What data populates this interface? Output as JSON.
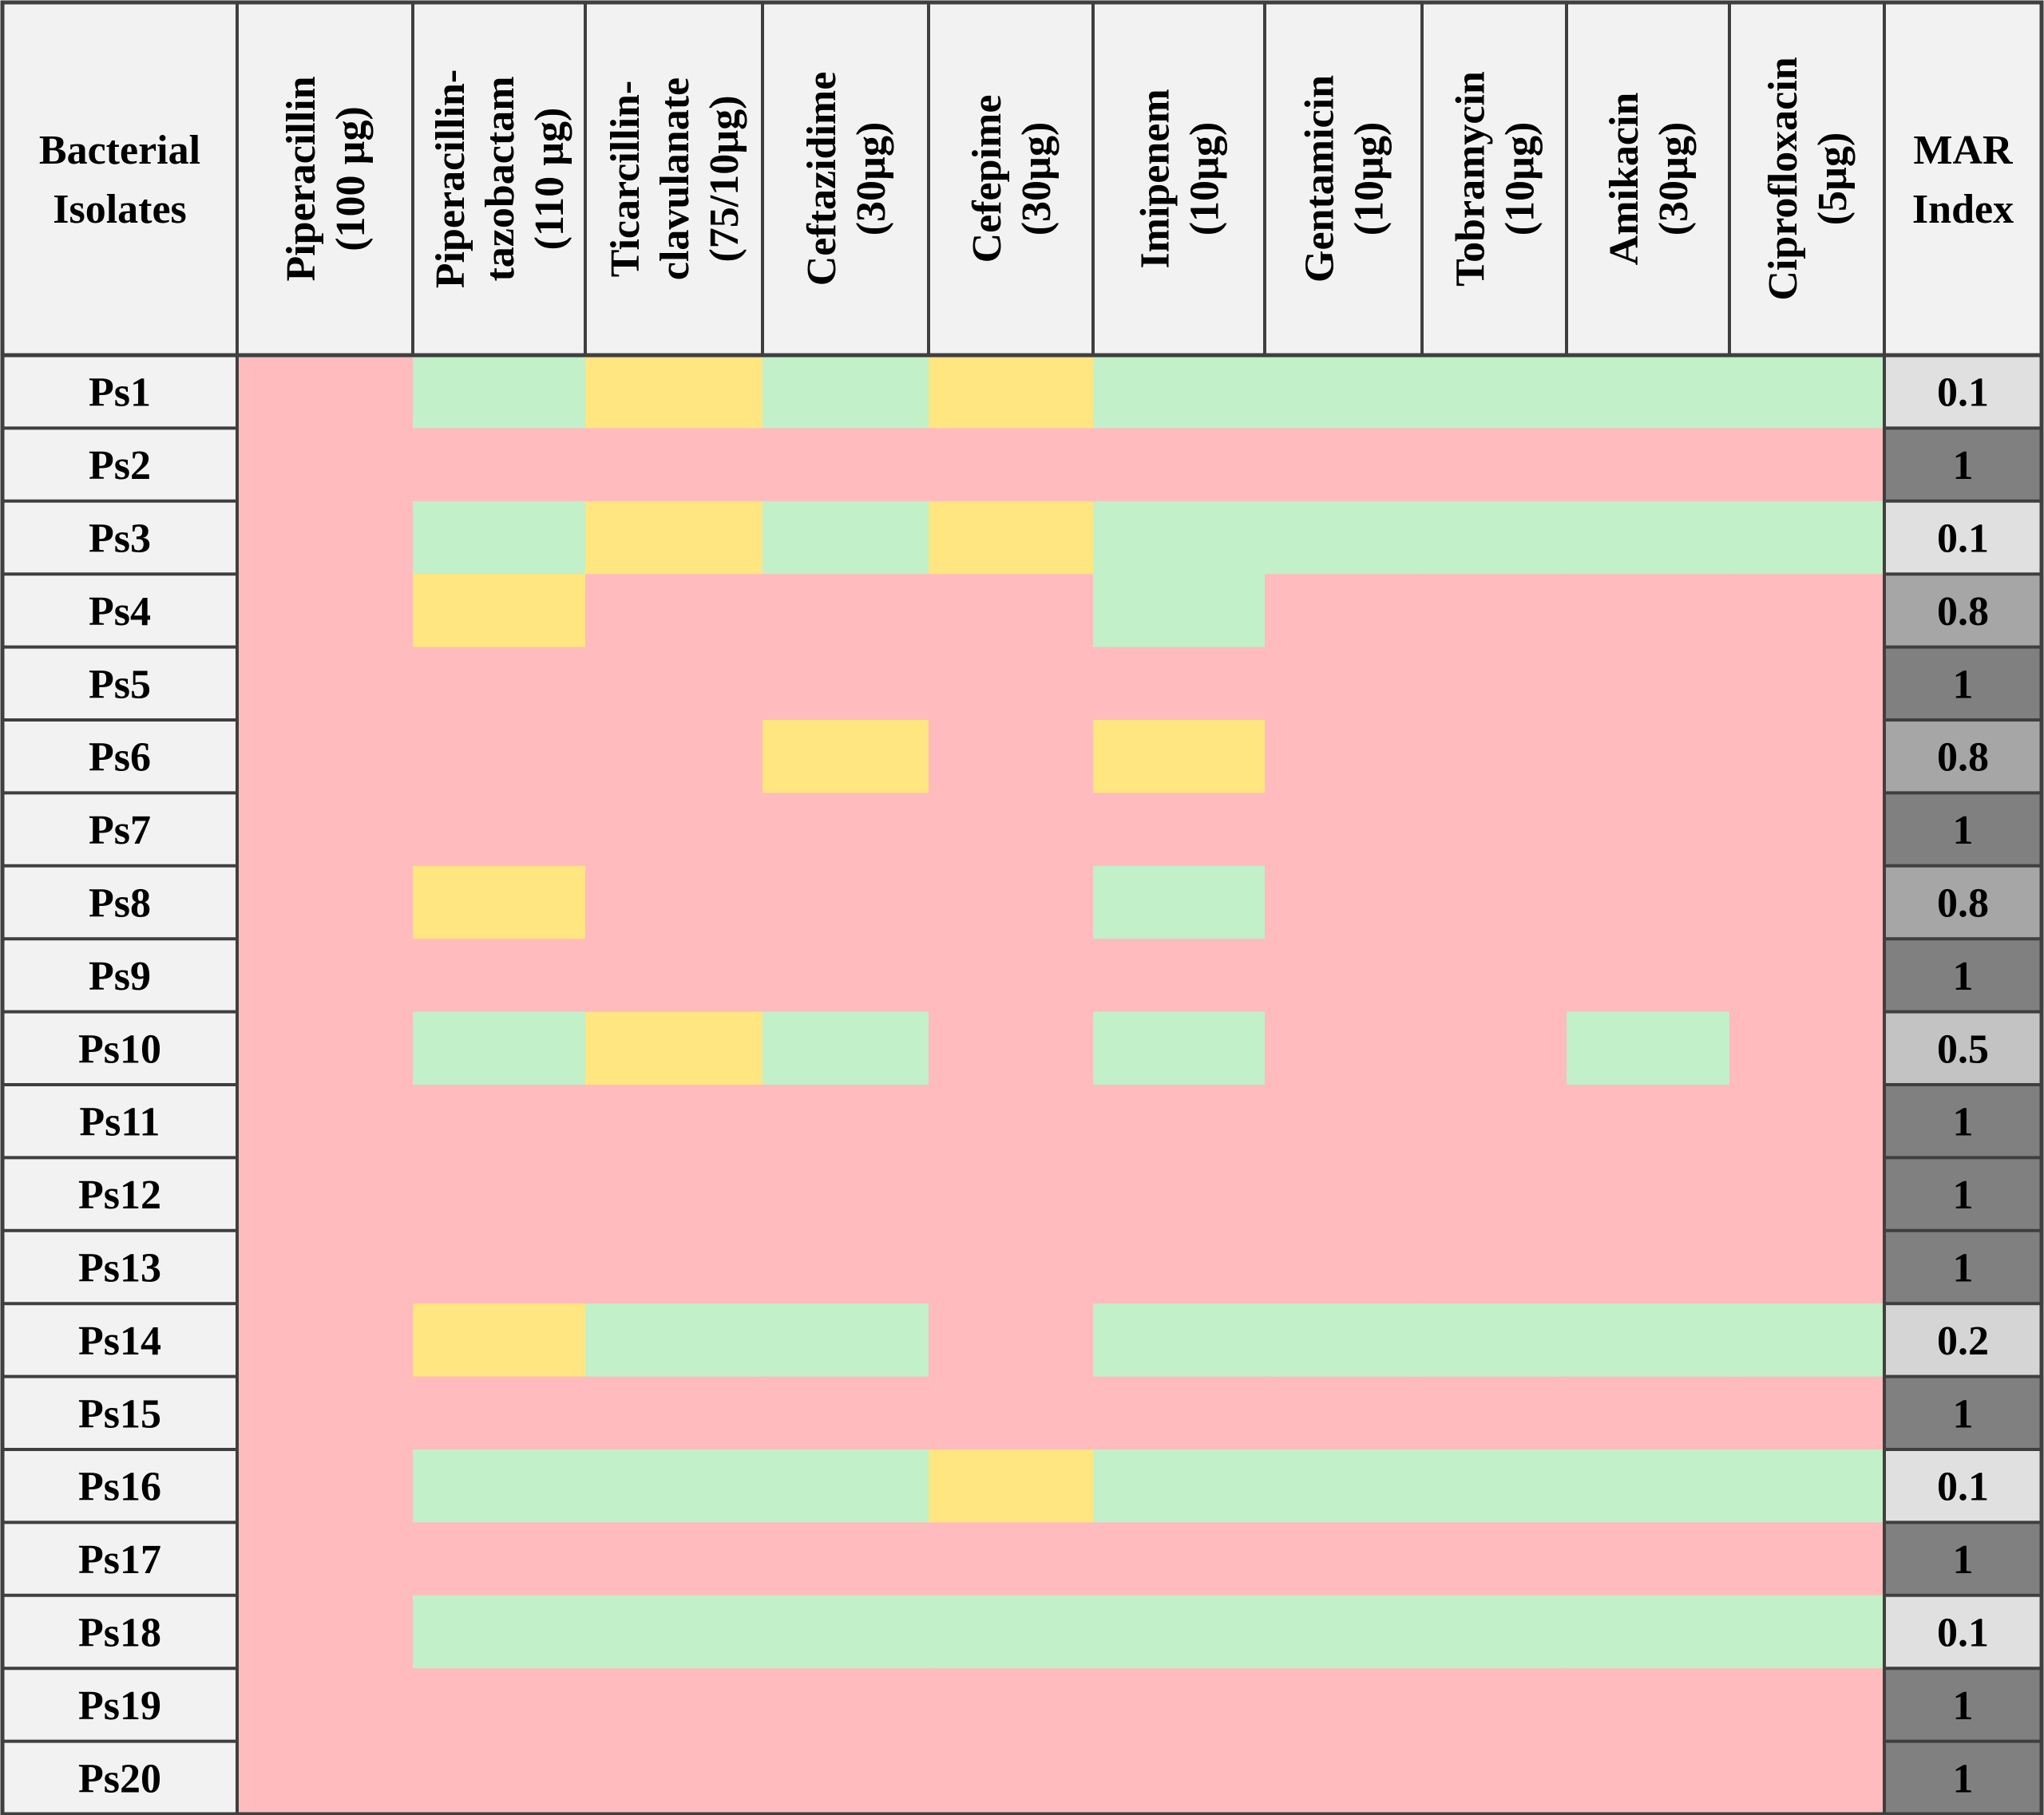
{
  "chart_data": {
    "type": "heatmap",
    "row_header": [
      "Bacterial",
      "Isolates"
    ],
    "columns": [
      {
        "lines": [
          "Piperacillin",
          "(100 µg)"
        ]
      },
      {
        "lines": [
          "Piperacillin-",
          "tazobactam",
          "(110 µg)"
        ]
      },
      {
        "lines": [
          "Ticarcillin-",
          "clavulanate",
          "(75/10µg)"
        ]
      },
      {
        "lines": [
          "Ceftazidime",
          "(30µg)"
        ]
      },
      {
        "lines": [
          "Cefepime",
          "(30µg)"
        ]
      },
      {
        "lines": [
          "Imipenem",
          "(10µg)"
        ]
      },
      {
        "lines": [
          "Gentamicin",
          "(10µg)"
        ]
      },
      {
        "lines": [
          "Tobramycin",
          "(10µg)"
        ]
      },
      {
        "lines": [
          "Amikacin",
          "(30µg)"
        ]
      },
      {
        "lines": [
          "Ciprofloxacin",
          "(5µg)"
        ]
      }
    ],
    "index_header": [
      "MAR",
      "Index"
    ],
    "rows": [
      {
        "label": "Ps1",
        "cells": [
          "R",
          "S",
          "I",
          "S",
          "I",
          "S",
          "S",
          "S",
          "S",
          "S"
        ],
        "mar": "0.1"
      },
      {
        "label": "Ps2",
        "cells": [
          "R",
          "R",
          "R",
          "R",
          "R",
          "R",
          "R",
          "R",
          "R",
          "R"
        ],
        "mar": "1"
      },
      {
        "label": "Ps3",
        "cells": [
          "R",
          "S",
          "I",
          "S",
          "I",
          "S",
          "S",
          "S",
          "S",
          "S"
        ],
        "mar": "0.1"
      },
      {
        "label": "Ps4",
        "cells": [
          "R",
          "I",
          "R",
          "R",
          "R",
          "S",
          "R",
          "R",
          "R",
          "R"
        ],
        "mar": "0.8"
      },
      {
        "label": "Ps5",
        "cells": [
          "R",
          "R",
          "R",
          "R",
          "R",
          "R",
          "R",
          "R",
          "R",
          "R"
        ],
        "mar": "1"
      },
      {
        "label": "Ps6",
        "cells": [
          "R",
          "R",
          "R",
          "I",
          "R",
          "I",
          "R",
          "R",
          "R",
          "R"
        ],
        "mar": "0.8"
      },
      {
        "label": "Ps7",
        "cells": [
          "R",
          "R",
          "R",
          "R",
          "R",
          "R",
          "R",
          "R",
          "R",
          "R"
        ],
        "mar": "1"
      },
      {
        "label": "Ps8",
        "cells": [
          "R",
          "I",
          "R",
          "R",
          "R",
          "S",
          "R",
          "R",
          "R",
          "R"
        ],
        "mar": "0.8"
      },
      {
        "label": "Ps9",
        "cells": [
          "R",
          "R",
          "R",
          "R",
          "R",
          "R",
          "R",
          "R",
          "R",
          "R"
        ],
        "mar": "1"
      },
      {
        "label": "Ps10",
        "cells": [
          "R",
          "S",
          "I",
          "S",
          "R",
          "S",
          "R",
          "R",
          "S",
          "R"
        ],
        "mar": "0.5"
      },
      {
        "label": "Ps11",
        "cells": [
          "R",
          "R",
          "R",
          "R",
          "R",
          "R",
          "R",
          "R",
          "R",
          "R"
        ],
        "mar": "1"
      },
      {
        "label": "Ps12",
        "cells": [
          "R",
          "R",
          "R",
          "R",
          "R",
          "R",
          "R",
          "R",
          "R",
          "R"
        ],
        "mar": "1"
      },
      {
        "label": "Ps13",
        "cells": [
          "R",
          "R",
          "R",
          "R",
          "R",
          "R",
          "R",
          "R",
          "R",
          "R"
        ],
        "mar": "1"
      },
      {
        "label": "Ps14",
        "cells": [
          "R",
          "I",
          "S",
          "S",
          "R",
          "S",
          "S",
          "S",
          "S",
          "S"
        ],
        "mar": "0.2"
      },
      {
        "label": "Ps15",
        "cells": [
          "R",
          "R",
          "R",
          "R",
          "R",
          "R",
          "R",
          "R",
          "R",
          "R"
        ],
        "mar": "1"
      },
      {
        "label": "Ps16",
        "cells": [
          "R",
          "S",
          "S",
          "S",
          "I",
          "S",
          "S",
          "S",
          "S",
          "S"
        ],
        "mar": "0.1"
      },
      {
        "label": "Ps17",
        "cells": [
          "R",
          "R",
          "R",
          "R",
          "R",
          "R",
          "R",
          "R",
          "R",
          "R"
        ],
        "mar": "1"
      },
      {
        "label": "Ps18",
        "cells": [
          "R",
          "S",
          "S",
          "S",
          "S",
          "S",
          "S",
          "S",
          "S",
          "S"
        ],
        "mar": "0.1"
      },
      {
        "label": "Ps19",
        "cells": [
          "R",
          "R",
          "R",
          "R",
          "R",
          "R",
          "R",
          "R",
          "R",
          "R"
        ],
        "mar": "1"
      },
      {
        "label": "Ps20",
        "cells": [
          "R",
          "R",
          "R",
          "R",
          "R",
          "R",
          "R",
          "R",
          "R",
          "R"
        ],
        "mar": "1"
      }
    ],
    "cell_colors": {
      "R": "#ffbbbd",
      "I": "#ffe680",
      "S": "#c2f0c8"
    },
    "mar_colors": {
      "0.1": "#e0e0e0",
      "0.2": "#d5d5d5",
      "0.5": "#c3c3c3",
      "0.8": "#a6a6a6",
      "1": "#808080"
    },
    "header_bg": "#f2f2f2",
    "border_color": "#3f3f3f"
  }
}
